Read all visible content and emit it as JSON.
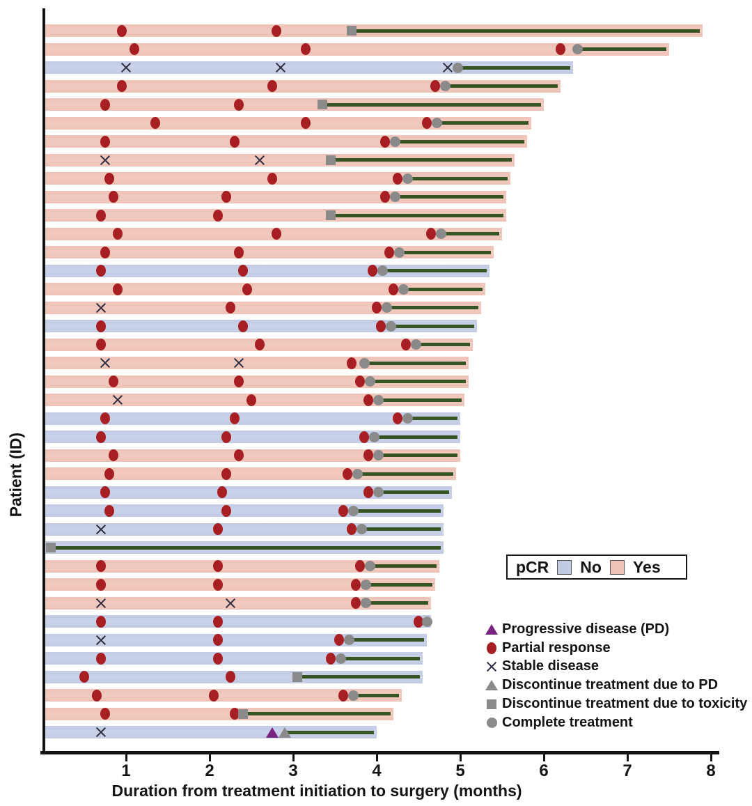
{
  "colors": {
    "pcr_no": "#c2cbe4",
    "pcr_yes": "#efc2b6",
    "partial_response": "#a81f23",
    "stable_disease": "#2e2e40",
    "progressive_disease": "#7a2482",
    "gray_marker": "#8a8a8a",
    "treatment_line": "#375423",
    "axis": "#141414"
  },
  "chart_data": {
    "type": "swimmer",
    "x_label": "Duration from treatment initiation to surgery (months)",
    "y_label": "Patient (ID)",
    "x_ticks": [
      1,
      2,
      3,
      4,
      5,
      6,
      7,
      8
    ],
    "xlim": [
      0,
      8.3
    ],
    "x_unit": "months",
    "pcr_legend": {
      "title": "pCR",
      "items": [
        {
          "key": "no",
          "label": "No"
        },
        {
          "key": "yes",
          "label": "Yes"
        }
      ]
    },
    "marker_legend": [
      {
        "marker": "PD",
        "label": "Progressive disease (PD)"
      },
      {
        "marker": "PR",
        "label": "Partial response"
      },
      {
        "marker": "SD",
        "label": "Stable disease"
      },
      {
        "marker": "DPD",
        "label": "Discontinue treatment due to PD"
      },
      {
        "marker": "TOX",
        "label": "Discontinue treatment due to toxicity"
      },
      {
        "marker": "CT",
        "label": "Complete treatment"
      }
    ],
    "marker_meanings": {
      "PD": "progressive-disease",
      "PR": "partial-response",
      "SD": "stable-disease",
      "DPD": "discontinue-due-to-pd",
      "TOX": "discontinue-due-to-toxicity",
      "CT": "complete-treatment"
    },
    "patients": [
      {
        "pcr": "yes",
        "surgery": 7.9,
        "events": [
          [
            "PR",
            0.95
          ],
          [
            "PR",
            2.8
          ],
          [
            "TOX",
            3.7
          ]
        ]
      },
      {
        "pcr": "yes",
        "surgery": 7.5,
        "events": [
          [
            "PR",
            1.1
          ],
          [
            "PR",
            3.15
          ],
          [
            "PR",
            6.2
          ],
          [
            "CT",
            6.4
          ]
        ]
      },
      {
        "pcr": "no",
        "surgery": 6.35,
        "events": [
          [
            "SD",
            1.0
          ],
          [
            "SD",
            2.85
          ],
          [
            "SD",
            4.85
          ],
          [
            "CT",
            4.97
          ]
        ]
      },
      {
        "pcr": "yes",
        "surgery": 6.2,
        "events": [
          [
            "PR",
            0.95
          ],
          [
            "PR",
            2.75
          ],
          [
            "PR",
            4.7
          ],
          [
            "CT",
            4.82
          ]
        ]
      },
      {
        "pcr": "yes",
        "surgery": 6.0,
        "events": [
          [
            "PR",
            0.75
          ],
          [
            "PR",
            2.35
          ],
          [
            "TOX",
            3.35
          ]
        ]
      },
      {
        "pcr": "yes",
        "surgery": 5.85,
        "events": [
          [
            "PR",
            1.35
          ],
          [
            "PR",
            3.15
          ],
          [
            "PR",
            4.6
          ],
          [
            "CT",
            4.72
          ]
        ]
      },
      {
        "pcr": "yes",
        "surgery": 5.8,
        "events": [
          [
            "PR",
            0.75
          ],
          [
            "PR",
            2.3
          ],
          [
            "PR",
            4.1
          ],
          [
            "CT",
            4.22
          ]
        ]
      },
      {
        "pcr": "yes",
        "surgery": 5.65,
        "events": [
          [
            "SD",
            0.75
          ],
          [
            "SD",
            2.6
          ],
          [
            "TOX",
            3.45
          ]
        ]
      },
      {
        "pcr": "yes",
        "surgery": 5.6,
        "events": [
          [
            "PR",
            0.8
          ],
          [
            "PR",
            2.75
          ],
          [
            "PR",
            4.25
          ],
          [
            "CT",
            4.37
          ]
        ]
      },
      {
        "pcr": "yes",
        "surgery": 5.55,
        "events": [
          [
            "PR",
            0.85
          ],
          [
            "PR",
            2.2
          ],
          [
            "PR",
            4.1
          ],
          [
            "CT",
            4.22
          ]
        ]
      },
      {
        "pcr": "yes",
        "surgery": 5.55,
        "events": [
          [
            "PR",
            0.7
          ],
          [
            "PR",
            2.1
          ],
          [
            "TOX",
            3.45
          ]
        ]
      },
      {
        "pcr": "yes",
        "surgery": 5.5,
        "events": [
          [
            "PR",
            0.9
          ],
          [
            "PR",
            2.8
          ],
          [
            "PR",
            4.65
          ],
          [
            "CT",
            4.77
          ]
        ]
      },
      {
        "pcr": "yes",
        "surgery": 5.4,
        "events": [
          [
            "PR",
            0.75
          ],
          [
            "PR",
            2.35
          ],
          [
            "PR",
            4.15
          ],
          [
            "CT",
            4.27
          ]
        ]
      },
      {
        "pcr": "no",
        "surgery": 5.35,
        "events": [
          [
            "PR",
            0.7
          ],
          [
            "PR",
            2.4
          ],
          [
            "PR",
            3.95
          ],
          [
            "CT",
            4.07
          ]
        ]
      },
      {
        "pcr": "yes",
        "surgery": 5.3,
        "events": [
          [
            "PR",
            0.9
          ],
          [
            "PR",
            2.45
          ],
          [
            "PR",
            4.2
          ],
          [
            "CT",
            4.32
          ]
        ]
      },
      {
        "pcr": "yes",
        "surgery": 5.25,
        "events": [
          [
            "SD",
            0.7
          ],
          [
            "PR",
            2.25
          ],
          [
            "PR",
            4.0
          ],
          [
            "CT",
            4.12
          ]
        ]
      },
      {
        "pcr": "no",
        "surgery": 5.2,
        "events": [
          [
            "PR",
            0.7
          ],
          [
            "PR",
            2.4
          ],
          [
            "PR",
            4.05
          ],
          [
            "CT",
            4.17
          ]
        ]
      },
      {
        "pcr": "yes",
        "surgery": 5.15,
        "events": [
          [
            "PR",
            0.7
          ],
          [
            "PR",
            2.6
          ],
          [
            "PR",
            4.35
          ],
          [
            "CT",
            4.47
          ]
        ]
      },
      {
        "pcr": "yes",
        "surgery": 5.1,
        "events": [
          [
            "SD",
            0.75
          ],
          [
            "SD",
            2.35
          ],
          [
            "PR",
            3.7
          ],
          [
            "CT",
            3.85
          ]
        ]
      },
      {
        "pcr": "yes",
        "surgery": 5.1,
        "events": [
          [
            "PR",
            0.85
          ],
          [
            "PR",
            2.35
          ],
          [
            "PR",
            3.8
          ],
          [
            "CT",
            3.92
          ]
        ]
      },
      {
        "pcr": "yes",
        "surgery": 5.05,
        "events": [
          [
            "SD",
            0.9
          ],
          [
            "PR",
            2.5
          ],
          [
            "PR",
            3.9
          ],
          [
            "CT",
            4.02
          ]
        ]
      },
      {
        "pcr": "no",
        "surgery": 5.0,
        "events": [
          [
            "PR",
            0.75
          ],
          [
            "PR",
            2.3
          ],
          [
            "PR",
            4.25
          ],
          [
            "CT",
            4.37
          ]
        ]
      },
      {
        "pcr": "no",
        "surgery": 5.0,
        "events": [
          [
            "PR",
            0.7
          ],
          [
            "PR",
            2.2
          ],
          [
            "PR",
            3.85
          ],
          [
            "CT",
            3.97
          ]
        ]
      },
      {
        "pcr": "yes",
        "surgery": 5.0,
        "events": [
          [
            "PR",
            0.85
          ],
          [
            "PR",
            2.35
          ],
          [
            "PR",
            3.9
          ],
          [
            "CT",
            4.02
          ]
        ]
      },
      {
        "pcr": "yes",
        "surgery": 4.95,
        "events": [
          [
            "PR",
            0.8
          ],
          [
            "PR",
            2.2
          ],
          [
            "PR",
            3.65
          ],
          [
            "CT",
            3.77
          ]
        ]
      },
      {
        "pcr": "no",
        "surgery": 4.9,
        "events": [
          [
            "PR",
            0.75
          ],
          [
            "PR",
            2.15
          ],
          [
            "PR",
            3.9
          ],
          [
            "CT",
            4.02
          ]
        ]
      },
      {
        "pcr": "no",
        "surgery": 4.8,
        "events": [
          [
            "PR",
            0.8
          ],
          [
            "PR",
            2.2
          ],
          [
            "PR",
            3.6
          ],
          [
            "CT",
            3.72
          ]
        ]
      },
      {
        "pcr": "no",
        "surgery": 4.8,
        "events": [
          [
            "SD",
            0.7
          ],
          [
            "PR",
            2.1
          ],
          [
            "PR",
            3.7
          ],
          [
            "CT",
            3.82
          ]
        ]
      },
      {
        "pcr": "no",
        "surgery": 4.8,
        "events": [
          [
            "TOX",
            0.1
          ]
        ]
      },
      {
        "pcr": "yes",
        "surgery": 4.75,
        "events": [
          [
            "PR",
            0.7
          ],
          [
            "PR",
            2.1
          ],
          [
            "PR",
            3.8
          ],
          [
            "CT",
            3.92
          ]
        ]
      },
      {
        "pcr": "yes",
        "surgery": 4.7,
        "events": [
          [
            "PR",
            0.7
          ],
          [
            "PR",
            2.1
          ],
          [
            "PR",
            3.75
          ],
          [
            "CT",
            3.87
          ]
        ]
      },
      {
        "pcr": "yes",
        "surgery": 4.65,
        "events": [
          [
            "SD",
            0.7
          ],
          [
            "SD",
            2.25
          ],
          [
            "PR",
            3.75
          ],
          [
            "CT",
            3.87
          ]
        ]
      },
      {
        "pcr": "no",
        "surgery": 4.65,
        "events": [
          [
            "PR",
            0.7
          ],
          [
            "PR",
            2.1
          ],
          [
            "PR",
            4.5
          ],
          [
            "CT",
            4.6
          ]
        ]
      },
      {
        "pcr": "no",
        "surgery": 4.6,
        "events": [
          [
            "SD",
            0.7
          ],
          [
            "PR",
            2.1
          ],
          [
            "PR",
            3.55
          ],
          [
            "CT",
            3.67
          ]
        ]
      },
      {
        "pcr": "no",
        "surgery": 4.55,
        "events": [
          [
            "PR",
            0.7
          ],
          [
            "PR",
            2.1
          ],
          [
            "PR",
            3.45
          ],
          [
            "CT",
            3.57
          ]
        ]
      },
      {
        "pcr": "no",
        "surgery": 4.55,
        "events": [
          [
            "PR",
            0.5
          ],
          [
            "PR",
            2.25
          ],
          [
            "TOX",
            3.05
          ]
        ]
      },
      {
        "pcr": "yes",
        "surgery": 4.3,
        "events": [
          [
            "PR",
            0.65
          ],
          [
            "PR",
            2.05
          ],
          [
            "PR",
            3.6
          ],
          [
            "CT",
            3.72
          ]
        ]
      },
      {
        "pcr": "yes",
        "surgery": 4.2,
        "events": [
          [
            "PR",
            0.75
          ],
          [
            "PR",
            2.3
          ],
          [
            "TOX",
            2.4
          ]
        ]
      },
      {
        "pcr": "no",
        "surgery": 4.0,
        "events": [
          [
            "SD",
            0.7
          ],
          [
            "PD",
            2.75
          ],
          [
            "DPD",
            2.9
          ]
        ]
      }
    ]
  }
}
